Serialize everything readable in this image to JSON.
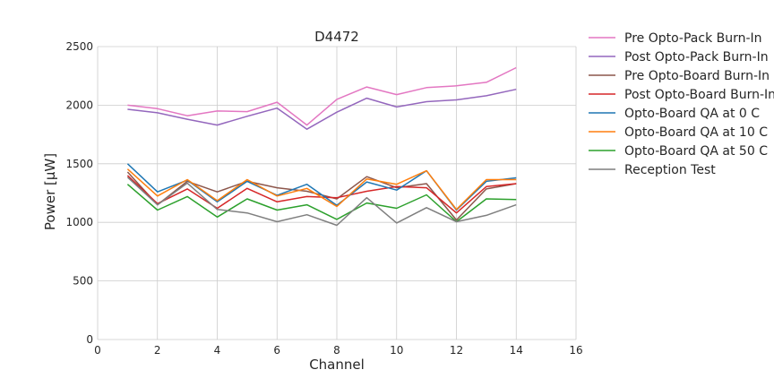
{
  "chart_data": {
    "type": "line",
    "title": "D4472",
    "xlabel": "Channel",
    "ylabel": "Power [μW]",
    "xlim": [
      0,
      16
    ],
    "ylim": [
      0,
      2500
    ],
    "xticks": [
      "0",
      "2",
      "4",
      "6",
      "8",
      "10",
      "12",
      "14",
      "16"
    ],
    "yticks": [
      "0",
      "500",
      "1000",
      "1500",
      "2000",
      "2500"
    ],
    "grid": true,
    "legend_position": "outside-right",
    "x": [
      1,
      2,
      3,
      4,
      5,
      6,
      7,
      8,
      9,
      10,
      11,
      12,
      13,
      14
    ],
    "series": [
      {
        "name": "Pre Opto-Pack Burn-In",
        "color": "#e377c2",
        "values": [
          2000,
          1970,
          1910,
          1950,
          1945,
          2025,
          1830,
          2050,
          2155,
          2090,
          2150,
          2165,
          2195,
          2320
        ]
      },
      {
        "name": "Post Opto-Pack Burn-In",
        "color": "#9467bd",
        "values": [
          1965,
          1935,
          1880,
          1830,
          1905,
          1975,
          1795,
          1940,
          2060,
          1985,
          2030,
          2045,
          2080,
          2135
        ]
      },
      {
        "name": "Pre Opto-Board Burn-In",
        "color": "#8c564b",
        "values": [
          1430,
          1150,
          1350,
          1260,
          1350,
          1295,
          1265,
          1200,
          1390,
          1295,
          1330,
          1020,
          1285,
          1330
        ]
      },
      {
        "name": "Post Opto-Board Burn-In",
        "color": "#d62728",
        "values": [
          1400,
          1160,
          1285,
          1120,
          1290,
          1175,
          1220,
          1210,
          1265,
          1305,
          1295,
          1080,
          1305,
          1330
        ]
      },
      {
        "name": "Opto-Board QA at 0 C",
        "color": "#1f77b4",
        "values": [
          1500,
          1260,
          1360,
          1175,
          1350,
          1230,
          1325,
          1145,
          1345,
          1275,
          1440,
          1105,
          1350,
          1380
        ]
      },
      {
        "name": "Opto-Board QA at 10 C",
        "color": "#ff7f0e",
        "values": [
          1455,
          1225,
          1365,
          1185,
          1365,
          1225,
          1290,
          1135,
          1370,
          1325,
          1440,
          1110,
          1365,
          1365
        ]
      },
      {
        "name": "Opto-Board QA at 50 C",
        "color": "#2ca02c",
        "values": [
          1325,
          1105,
          1220,
          1045,
          1200,
          1105,
          1150,
          1025,
          1165,
          1120,
          1235,
          1005,
          1200,
          1195
        ]
      },
      {
        "name": "Reception Test",
        "color": "#7f7f7f",
        "values": [
          1385,
          1150,
          1335,
          1110,
          1080,
          1005,
          1065,
          975,
          1210,
          995,
          1125,
          1005,
          1060,
          1150
        ]
      }
    ]
  }
}
